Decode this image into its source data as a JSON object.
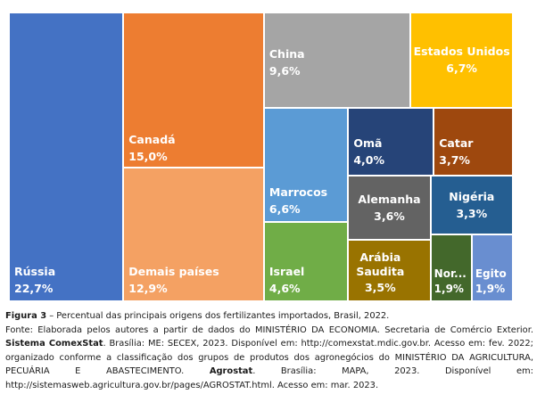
{
  "chart_data": {
    "type": "treemap",
    "items": [
      {
        "name": "Rússia",
        "value_label": "22,7%",
        "value": 22.7,
        "color": "#4472C4"
      },
      {
        "name": "Canadá",
        "value_label": "15,0%",
        "value": 15.0,
        "color": "#ED7D31"
      },
      {
        "name": "Demais países",
        "value_label": "12,9%",
        "value": 12.9,
        "color": "#F4A163"
      },
      {
        "name": "China",
        "value_label": "9,6%",
        "value": 9.6,
        "color": "#A5A5A5"
      },
      {
        "name": "Estados Unidos",
        "value_label": "6,7%",
        "value": 6.7,
        "color": "#FFC000"
      },
      {
        "name": "Marrocos",
        "value_label": "6,6%",
        "value": 6.6,
        "color": "#5B9BD5"
      },
      {
        "name": "Israel",
        "value_label": "4,6%",
        "value": 4.6,
        "color": "#70AD47"
      },
      {
        "name": "Omã",
        "value_label": "4,0%",
        "value": 4.0,
        "color": "#264478"
      },
      {
        "name": "Catar",
        "value_label": "3,7%",
        "value": 3.7,
        "color": "#9E480E"
      },
      {
        "name": "Alemanha",
        "value_label": "3,6%",
        "value": 3.6,
        "color": "#636363"
      },
      {
        "name": "Arábia Saudita",
        "value_label": "3,5%",
        "value": 3.5,
        "color": "#997300"
      },
      {
        "name": "Nigéria",
        "value_label": "3,3%",
        "value": 3.3,
        "color": "#255E91"
      },
      {
        "name": "Nor...",
        "value_label": "1,9%",
        "value": 1.9,
        "color": "#43682B"
      },
      {
        "name": "Egito",
        "value_label": "1,9%",
        "value": 1.9,
        "color": "#698ED0"
      }
    ]
  },
  "caption": {
    "figure_label": "Figura 3",
    "title": " – Percentual das principais origens dos fertilizantes importados, Brasil, 2022.",
    "source_part1": "Fonte: Elaborada pelos autores a partir de dados do MINISTÉRIO DA ECONOMIA. Secretaria de Comércio Exterior. ",
    "source_bold1": "Sistema ComexStat",
    "source_part2": ". Brasília: ME: SECEX, 2023. Disponível em: http://comexstat.mdic.gov.br. Acesso em: fev. 2022; organizado conforme a classificação dos grupos de produtos dos agronegócios do MINISTÉRIO DA AGRICULTURA, PECUÁRIA E ABASTECIMENTO. ",
    "source_bold2": "Agrostat",
    "source_part3": ". Brasília: MAPA, 2023. Disponível em: http://sistemasweb.agricultura.gov.br/pages/AGROSTAT.html. Acesso em: mar. 2023."
  }
}
